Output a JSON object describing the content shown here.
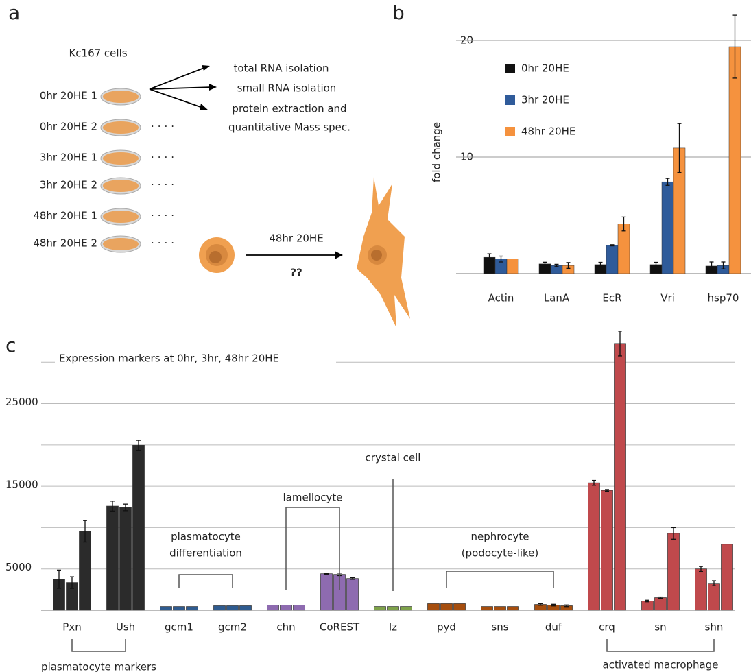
{
  "panel_labels": [
    "a",
    "b",
    "c"
  ],
  "diagram": {
    "cell_line": "Kc167 cells",
    "samples": [
      "0hr 20HE 1",
      "0hr 20HE 2",
      "3hr 20HE 1",
      "3hr 20HE 2",
      "48hr 20HE 1",
      "48hr 20HE 2"
    ],
    "outputs": [
      "total RNA isolation",
      "small RNA isolation",
      "protein extraction and",
      "quantitative Mass spec."
    ],
    "treatment": "48hr 20HE",
    "outcome": "??"
  },
  "chart_data": [
    {
      "type": "bar",
      "y_label": "fold change",
      "categories": [
        "Actin",
        "LanA",
        "EcR",
        "Vri",
        "hsp70"
      ],
      "series": [
        {
          "name": "0hr 20HE",
          "color": "#111111",
          "values": [
            1.4,
            0.83,
            0.77,
            0.77,
            0.65
          ],
          "errors": [
            0.3,
            0.15,
            0.2,
            0.2,
            0.35
          ]
        },
        {
          "name": "3hr 20HE",
          "color": "#2f5b9a",
          "values": [
            1.25,
            0.7,
            2.43,
            7.87,
            0.7
          ],
          "errors": [
            0.25,
            0.1,
            0.05,
            0.3,
            0.3
          ]
        },
        {
          "name": "48hr 20HE",
          "color": "#f5923e",
          "values": [
            1.25,
            0.7,
            4.26,
            10.77,
            19.47
          ],
          "errors": [
            0,
            0.25,
            0.6,
            2.1,
            2.7
          ]
        }
      ],
      "ylim": [
        0,
        22
      ],
      "yticks": [
        10,
        20
      ],
      "grid": true,
      "legend": "upper-left"
    },
    {
      "type": "bar",
      "title": "Expression markers at 0hr, 3hr, 48hr 20HE",
      "categories": [
        "Pxn",
        "Ush",
        "gcm1",
        "gcm2",
        "chn",
        "CoREST",
        "lz",
        "pyd",
        "sns",
        "duf",
        "crq",
        "sn",
        "shn"
      ],
      "colors": [
        "#2b2b2b",
        "#2b2b2b",
        "#2f5b8f",
        "#2f5b8f",
        "#8e6bb0",
        "#8e6bb0",
        "#7ea24a",
        "#a64e0e",
        "#a64e0e",
        "#a64e0e",
        "#c0494c",
        "#c0494c",
        "#c0494c"
      ],
      "series": [
        {
          "values": [
            3760,
            12600,
            450,
            540,
            620,
            4420,
            450,
            790,
            450,
            700,
            15410,
            1120,
            5000
          ],
          "errors": [
            1100,
            600,
            0,
            0,
            0,
            50,
            0,
            0,
            0,
            100,
            300,
            100,
            300
          ]
        },
        {
          "values": [
            3350,
            12440,
            450,
            540,
            620,
            4340,
            450,
            790,
            450,
            620,
            14500,
            1530,
            3260
          ],
          "errors": [
            700,
            400,
            0,
            0,
            0,
            150,
            0,
            0,
            0,
            100,
            100,
            80,
            300
          ]
        },
        {
          "values": [
            9550,
            19960,
            450,
            540,
            620,
            3840,
            450,
            790,
            450,
            540,
            32270,
            9300,
            7980
          ],
          "errors": [
            1300,
            600,
            0,
            0,
            0,
            100,
            0,
            0,
            0,
            100,
            1500,
            700,
            0
          ]
        }
      ],
      "ylim": [
        0,
        34000
      ],
      "yticks": [
        5000,
        15000,
        25000
      ],
      "ygrid": [
        5000,
        10000,
        15000,
        20000,
        25000,
        30000
      ],
      "annotations": [
        {
          "lines": [
            "plasmatocyte",
            "differentiation"
          ]
        },
        {
          "lines": [
            "lamellocyte"
          ]
        },
        {
          "lines": [
            "crystal cell"
          ]
        },
        {
          "lines": [
            "nephrocyte",
            "(podocyte-like)"
          ]
        },
        {
          "lines": [
            "plasmatocyte markers"
          ]
        },
        {
          "lines": [
            "activated macrophage"
          ]
        }
      ]
    }
  ]
}
